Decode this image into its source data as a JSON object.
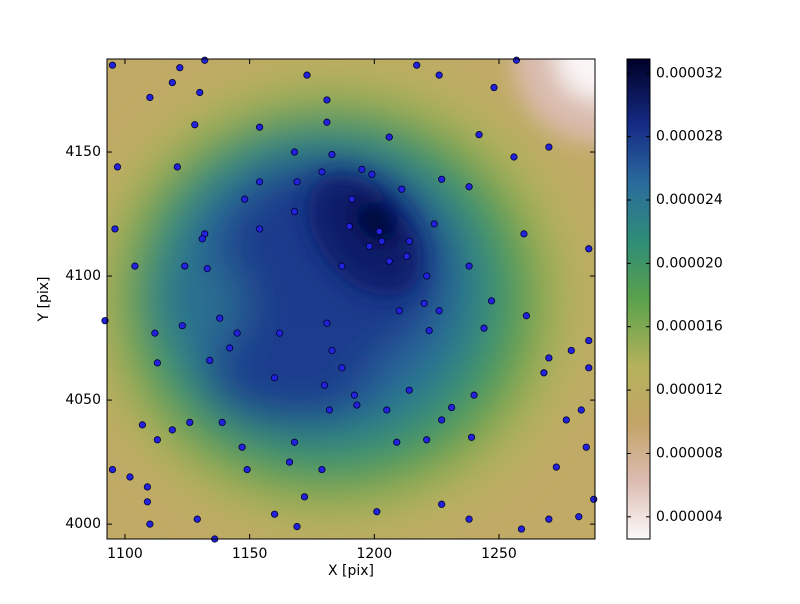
{
  "chart_data": {
    "type": "scatter",
    "x_label": "X [pix]",
    "y_label": "Y [pix]",
    "xlim": [
      1092.8,
      1288.5
    ],
    "ylim": [
      3994,
      4187.5
    ],
    "xticks": [
      1100,
      1150,
      1200,
      1250
    ],
    "yticks": [
      4000,
      4050,
      4100,
      4150
    ],
    "color": "#2222dd",
    "x": [
      1095,
      1122,
      1132,
      1173,
      1217,
      1226,
      1257,
      1119,
      1110,
      1130,
      1181,
      1248,
      1128,
      1154,
      1181,
      1206,
      1242,
      1168,
      1183,
      1270,
      1097,
      1121,
      1256,
      1179,
      1195,
      1199,
      1154,
      1169,
      1211,
      1227,
      1238,
      1096,
      1132,
      1148,
      1154,
      1168,
      1191,
      1131,
      1124,
      1104,
      1133,
      1187,
      1198,
      1203,
      1202,
      1190,
      1214,
      1224,
      1213,
      1206,
      1260,
      1238,
      1221,
      1286,
      1092,
      1123,
      1112,
      1113,
      1138,
      1145,
      1162,
      1181,
      1210,
      1220,
      1226,
      1222,
      1244,
      1247,
      1261,
      1134,
      1142,
      1183,
      1270,
      1286,
      1279,
      1160,
      1180,
      1187,
      1192,
      1193,
      1205,
      1214,
      1240,
      1268,
      1286,
      1095,
      1102,
      1109,
      1109,
      1110,
      1107,
      1113,
      1119,
      1126,
      1139,
      1147,
      1149,
      1168,
      1166,
      1182,
      1179,
      1209,
      1221,
      1227,
      1231,
      1239,
      1283,
      1277,
      1285,
      1273,
      1172,
      1169,
      1160,
      1129,
      1136,
      1201,
      1227,
      1238,
      1259,
      1270,
      1282,
      1288
    ],
    "y": [
      4185,
      4184,
      4187,
      4181,
      4185,
      4181,
      4187,
      4178,
      4172,
      4174,
      4171,
      4176,
      4161,
      4160,
      4162,
      4156,
      4157,
      4150,
      4149,
      4152,
      4144,
      4144,
      4148,
      4142,
      4143,
      4141,
      4138,
      4138,
      4135,
      4139,
      4136,
      4119,
      4117,
      4131,
      4119,
      4126,
      4131,
      4115,
      4104,
      4104,
      4103,
      4104,
      4112,
      4114,
      4118,
      4120,
      4114,
      4121,
      4108,
      4106,
      4117,
      4104,
      4100,
      4111,
      4082,
      4080,
      4077,
      4065,
      4083,
      4077,
      4077,
      4081,
      4086,
      4089,
      4086,
      4078,
      4079,
      4090,
      4084,
      4066,
      4071,
      4070,
      4067,
      4074,
      4070,
      4059,
      4056,
      4063,
      4052,
      4048,
      4046,
      4054,
      4052,
      4061,
      4063,
      4022,
      4019,
      4015,
      4009,
      4000,
      4040,
      4034,
      4038,
      4041,
      4041,
      4031,
      4022,
      4033,
      4025,
      4046,
      4022,
      4033,
      4034,
      4042,
      4047,
      4035,
      4046,
      4042,
      4031,
      4023,
      4011,
      3999,
      4004,
      4002,
      3994,
      4005,
      4008,
      4002,
      3998,
      4002,
      4003,
      4010
    ],
    "colorbar": {
      "lim": [
        2.6e-06,
        3.29e-05
      ],
      "ticks": [
        {
          "value": 4e-06,
          "label": "0.000004"
        },
        {
          "value": 8e-06,
          "label": "0.000008"
        },
        {
          "value": 1.2e-05,
          "label": "0.000012"
        },
        {
          "value": 1.6e-05,
          "label": "0.000016"
        },
        {
          "value": 2e-05,
          "label": "0.000020"
        },
        {
          "value": 2.4e-05,
          "label": "0.000024"
        },
        {
          "value": 2.8e-05,
          "label": "0.000028"
        },
        {
          "value": 3.2e-05,
          "label": "0.000032"
        }
      ]
    }
  }
}
